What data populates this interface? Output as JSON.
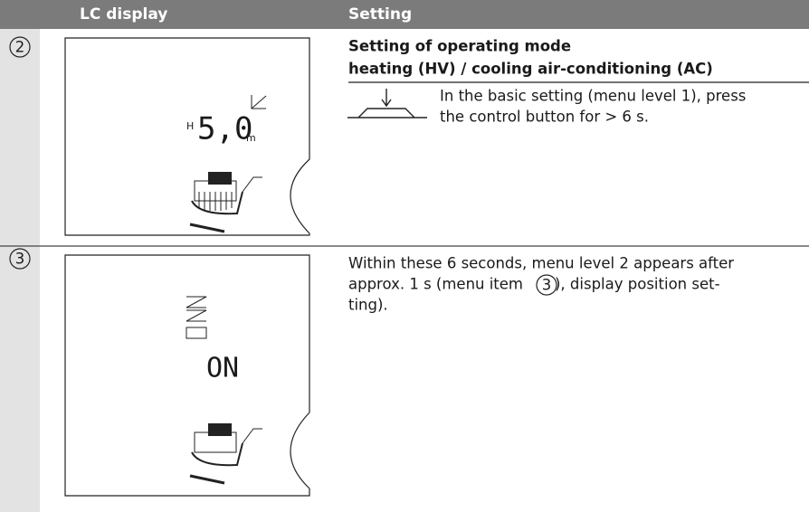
{
  "table": {
    "header": [
      "LC display",
      "Setting"
    ],
    "rows": [
      {
        "number": "2",
        "lcd": [
          "H",
          "5,0",
          "m"
        ],
        "title": [
          "Setting of operating mode",
          "heating (HV) / cooling air-conditioning (AC)"
        ],
        "text": [
          "In the basic setting (menu level 1), press",
          "the control button for > 6 s."
        ]
      },
      {
        "number": "3",
        "lcd": [
          "ON"
        ],
        "text": [
          "Within these 6 seconds, menu level 2 appears after",
          "approx. 1 s (menu item",
          "3",
          "), display position set-",
          "ting)."
        ]
      }
    ]
  }
}
